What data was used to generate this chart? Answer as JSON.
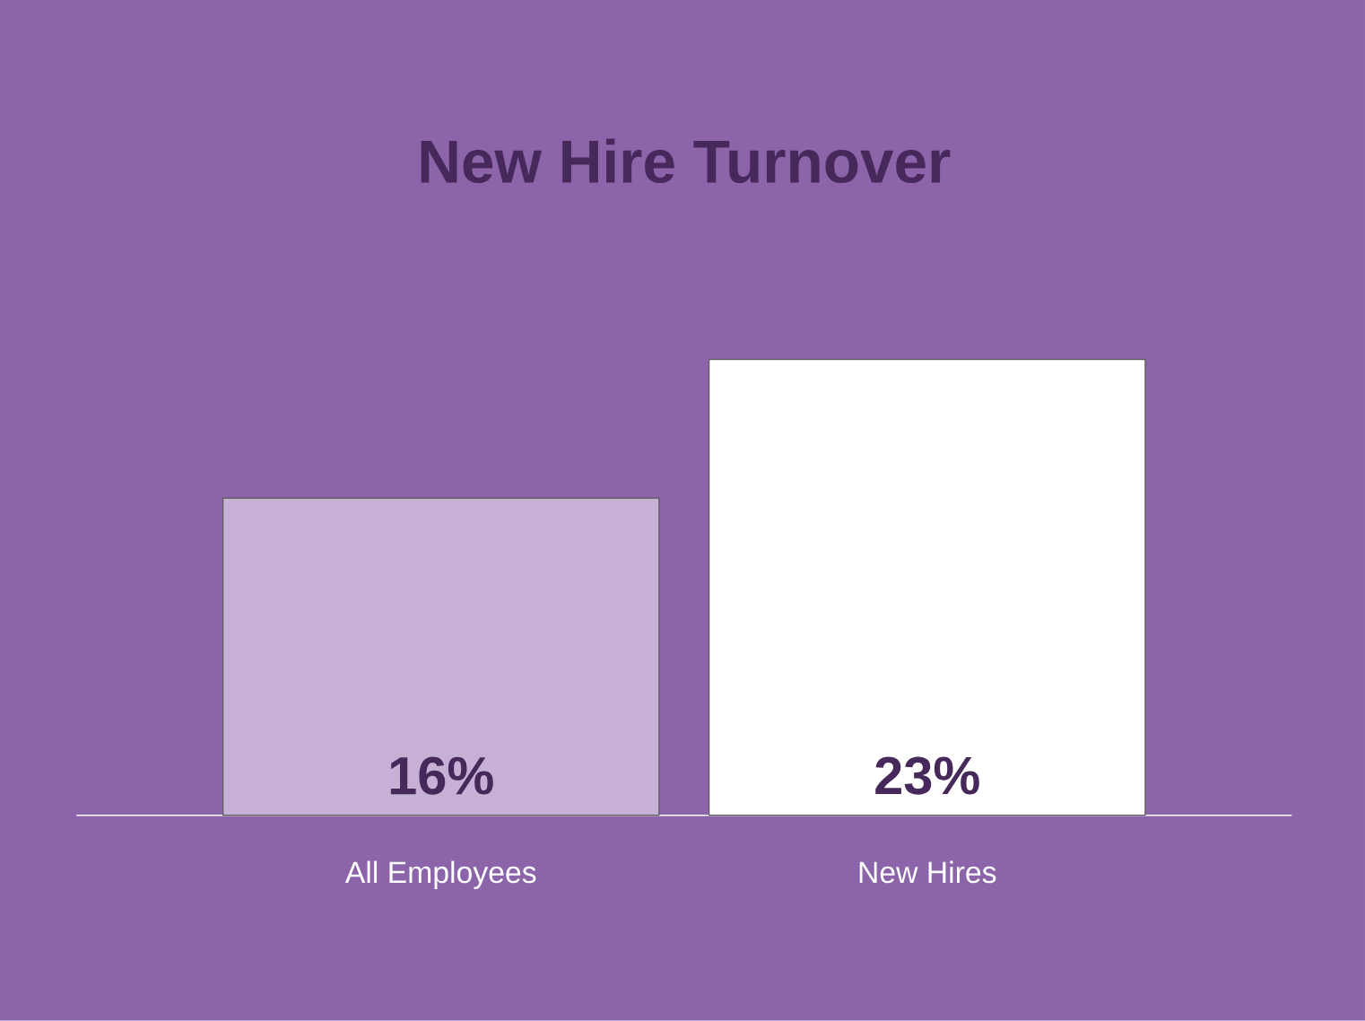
{
  "chart_data": {
    "type": "bar",
    "title": "New Hire Turnover",
    "categories": [
      "All Employees",
      "New Hires"
    ],
    "values": [
      16,
      23
    ],
    "colors": [
      "#c6b0d5",
      "#ffffff"
    ],
    "value_labels": [
      "16%",
      "23%"
    ],
    "tick_labels": "x"
  }
}
